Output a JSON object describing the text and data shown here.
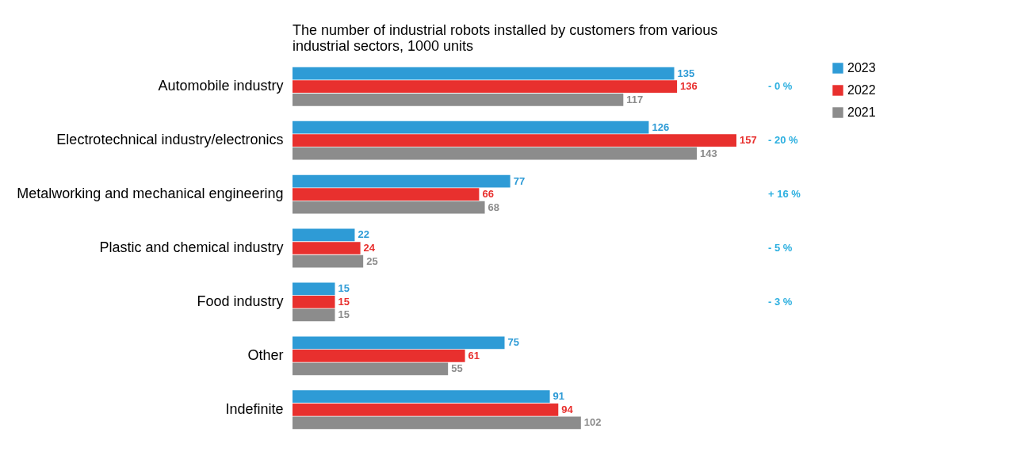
{
  "chart_data": {
    "type": "bar",
    "orientation": "horizontal",
    "title": "The number of industrial robots installed by customers from various industrial sectors, 1000 units",
    "categories": [
      "Automobile industry",
      "Electrotechnical industry/electronics",
      "Metalworking and mechanical engineering",
      "Plastic and chemical industry",
      "Food industry",
      "Other",
      "Indefinite"
    ],
    "series": [
      {
        "name": "2023",
        "color": "#2e9bd6",
        "values": [
          135,
          126,
          77,
          22,
          15,
          75,
          91
        ]
      },
      {
        "name": "2022",
        "color": "#e8302e",
        "values": [
          136,
          157,
          66,
          24,
          15,
          61,
          94
        ]
      },
      {
        "name": "2021",
        "color": "#8c8c8c",
        "values": [
          117,
          143,
          68,
          25,
          15,
          55,
          102
        ]
      }
    ],
    "data_labels": true,
    "legend": "right",
    "annotations": [
      "- 0 %",
      "- 20 %",
      "+ 16 %",
      "- 5 %",
      "- 3 %"
    ]
  }
}
